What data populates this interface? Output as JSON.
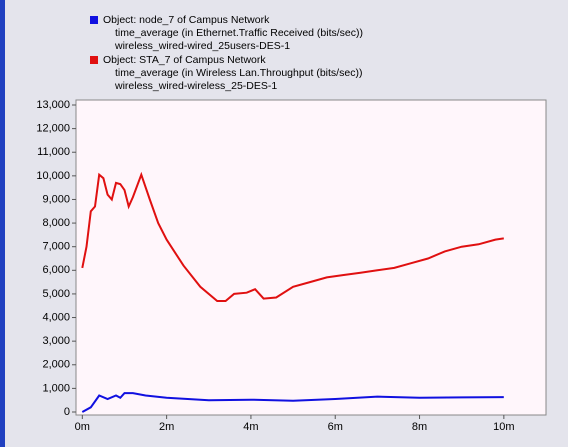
{
  "chart_data": {
    "type": "line",
    "xlim": [
      -0.15,
      11.0
    ],
    "ylim": [
      0,
      13000
    ],
    "xticks": [
      {
        "value": 0,
        "label": "0m"
      },
      {
        "value": 2,
        "label": "2m"
      },
      {
        "value": 4,
        "label": "4m"
      },
      {
        "value": 6,
        "label": "6m"
      },
      {
        "value": 8,
        "label": "8m"
      },
      {
        "value": 10,
        "label": "10m"
      }
    ],
    "yticks": [
      0,
      {
        "value": 1000,
        "label": "1,000"
      },
      {
        "value": 2000,
        "label": "2,000"
      },
      {
        "value": 3000,
        "label": "3,000"
      },
      {
        "value": 4000,
        "label": "4,000"
      },
      {
        "value": 5000,
        "label": "5,000"
      },
      {
        "value": 6000,
        "label": "6,000"
      },
      {
        "value": 7000,
        "label": "7,000"
      },
      {
        "value": 8000,
        "label": "8,000"
      },
      {
        "value": 9000,
        "label": "9,000"
      },
      {
        "value": 10000,
        "label": "10,000"
      },
      {
        "value": 11000,
        "label": "11,000"
      },
      {
        "value": 12000,
        "label": "12,000"
      },
      {
        "value": 13000,
        "label": "13,000"
      }
    ],
    "series": [
      {
        "name": "Object: node_7 of Campus Network",
        "details": [
          "time_average (in Ethernet.Traffic Received (bits/sec))",
          "wireless_wired-wired_25users-DES-1"
        ],
        "color": "#1010e0",
        "x": [
          0,
          0.2,
          0.4,
          0.6,
          0.8,
          0.9,
          1.0,
          1.2,
          1.5,
          2,
          3,
          4,
          5,
          6,
          7,
          8,
          9,
          10
        ],
        "values": [
          0,
          200,
          700,
          550,
          700,
          600,
          800,
          800,
          700,
          600,
          500,
          520,
          480,
          550,
          650,
          600,
          620,
          630
        ]
      },
      {
        "name": "Object: STA_7 of Campus Network",
        "details": [
          "time_average (in Wireless Lan.Throughput (bits/sec))",
          "wireless_wired-wireless_25-DES-1"
        ],
        "color": "#e01010",
        "x": [
          0,
          0.1,
          0.2,
          0.3,
          0.4,
          0.5,
          0.6,
          0.7,
          0.8,
          0.9,
          1.0,
          1.1,
          1.2,
          1.4,
          1.6,
          1.8,
          2.0,
          2.4,
          2.8,
          3.2,
          3.4,
          3.6,
          3.9,
          4.1,
          4.3,
          4.6,
          5.0,
          5.4,
          5.8,
          6.2,
          6.6,
          7.0,
          7.4,
          7.8,
          8.2,
          8.6,
          9.0,
          9.4,
          9.8,
          10.0
        ],
        "values": [
          6100,
          7000,
          8500,
          8700,
          10050,
          9900,
          9200,
          9000,
          9700,
          9650,
          9400,
          8700,
          9100,
          10050,
          9000,
          8000,
          7300,
          6200,
          5300,
          4700,
          4700,
          5000,
          5050,
          5200,
          4800,
          4850,
          5300,
          5500,
          5700,
          5800,
          5900,
          6000,
          6100,
          6300,
          6500,
          6800,
          7000,
          7100,
          7300,
          7350
        ]
      }
    ]
  }
}
